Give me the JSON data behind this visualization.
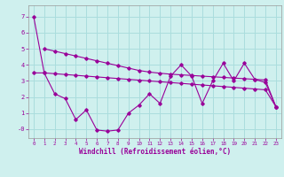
{
  "xlabel": "Windchill (Refroidissement éolien,°C)",
  "bg_color": "#cff0ee",
  "line_color": "#990099",
  "grid_color": "#aadddd",
  "x_ticks": [
    0,
    1,
    2,
    3,
    4,
    5,
    6,
    7,
    8,
    9,
    10,
    11,
    12,
    13,
    14,
    15,
    16,
    17,
    18,
    19,
    20,
    21,
    22,
    23
  ],
  "y_ticks": [
    0,
    1,
    2,
    3,
    4,
    5,
    6,
    7
  ],
  "ylim": [
    -0.55,
    7.7
  ],
  "xlim": [
    -0.5,
    23.5
  ],
  "line1_x": [
    0,
    1,
    2,
    3,
    4,
    5,
    6,
    7,
    8,
    9,
    10,
    11,
    12,
    13,
    14,
    15,
    16,
    17,
    18,
    19,
    20,
    21,
    22,
    23
  ],
  "line1_y": [
    7.0,
    3.5,
    3.45,
    3.4,
    3.35,
    3.3,
    3.25,
    3.2,
    3.15,
    3.1,
    3.05,
    3.0,
    2.95,
    2.9,
    2.85,
    2.8,
    2.75,
    2.7,
    2.65,
    2.6,
    2.55,
    2.5,
    2.45,
    1.4
  ],
  "line2_x": [
    1,
    2,
    3,
    4,
    5,
    6,
    7,
    8,
    9,
    10,
    11,
    12,
    13,
    14,
    15,
    16,
    17,
    18,
    19,
    20,
    21,
    22,
    23
  ],
  "line2_y": [
    5.0,
    4.85,
    4.7,
    4.55,
    4.4,
    4.25,
    4.1,
    3.95,
    3.8,
    3.65,
    3.55,
    3.48,
    3.42,
    3.38,
    3.34,
    3.3,
    3.26,
    3.22,
    3.18,
    3.14,
    3.1,
    3.06,
    1.4
  ],
  "line3_x": [
    0,
    1,
    2,
    3,
    4,
    5,
    6,
    7,
    8,
    9,
    10,
    11,
    12,
    13,
    14,
    15,
    16,
    17,
    18,
    19,
    20,
    21,
    22,
    23
  ],
  "line3_y": [
    3.5,
    3.5,
    2.2,
    1.9,
    0.6,
    1.2,
    -0.05,
    -0.12,
    -0.05,
    1.0,
    1.5,
    2.2,
    1.6,
    3.3,
    4.0,
    3.3,
    1.6,
    3.0,
    4.1,
    3.0,
    4.1,
    3.1,
    2.9,
    1.4
  ]
}
